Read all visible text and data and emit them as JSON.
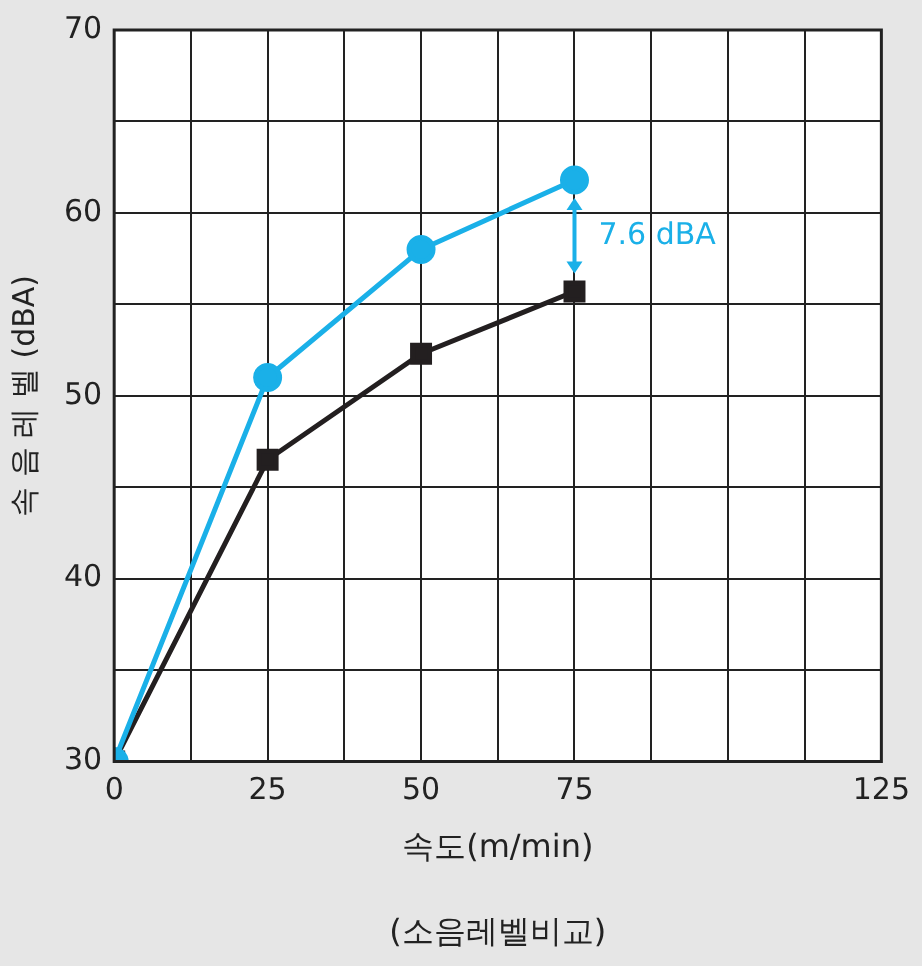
{
  "chart_data": {
    "type": "line",
    "xlabel": "속도(m/min)",
    "ylabel": "속 음 레 벨 (dBA)",
    "x": [
      0,
      25,
      50,
      75
    ],
    "series": [
      {
        "color": "#1ab0e8",
        "marker": "circle",
        "values": [
          30,
          51,
          58,
          61.8
        ]
      },
      {
        "color": "#231f20",
        "marker": "square",
        "values": [
          30,
          46.5,
          52.3,
          55.7
        ]
      }
    ],
    "xlim": [
      0,
      125
    ],
    "xticks": [
      0,
      {
        "value": 12.5,
        "label": null
      },
      25,
      {
        "value": 37.5,
        "label": null
      },
      50,
      {
        "value": 62.5,
        "label": null
      },
      75,
      {
        "value": 87.5,
        "label": null
      },
      {
        "value": 100,
        "label": null
      },
      {
        "value": 112.5,
        "label": null
      },
      125
    ],
    "ylim": [
      30,
      70
    ],
    "yticks": [
      30,
      {
        "value": 35,
        "label": null
      },
      40,
      {
        "value": 45,
        "label": null
      },
      50,
      {
        "value": 55,
        "label": null
      },
      60,
      {
        "value": 65,
        "label": null
      },
      70
    ],
    "grid": true,
    "legend": false,
    "annotations": [
      "7.6 dBA",
      "(소음레벨비교)"
    ]
  }
}
